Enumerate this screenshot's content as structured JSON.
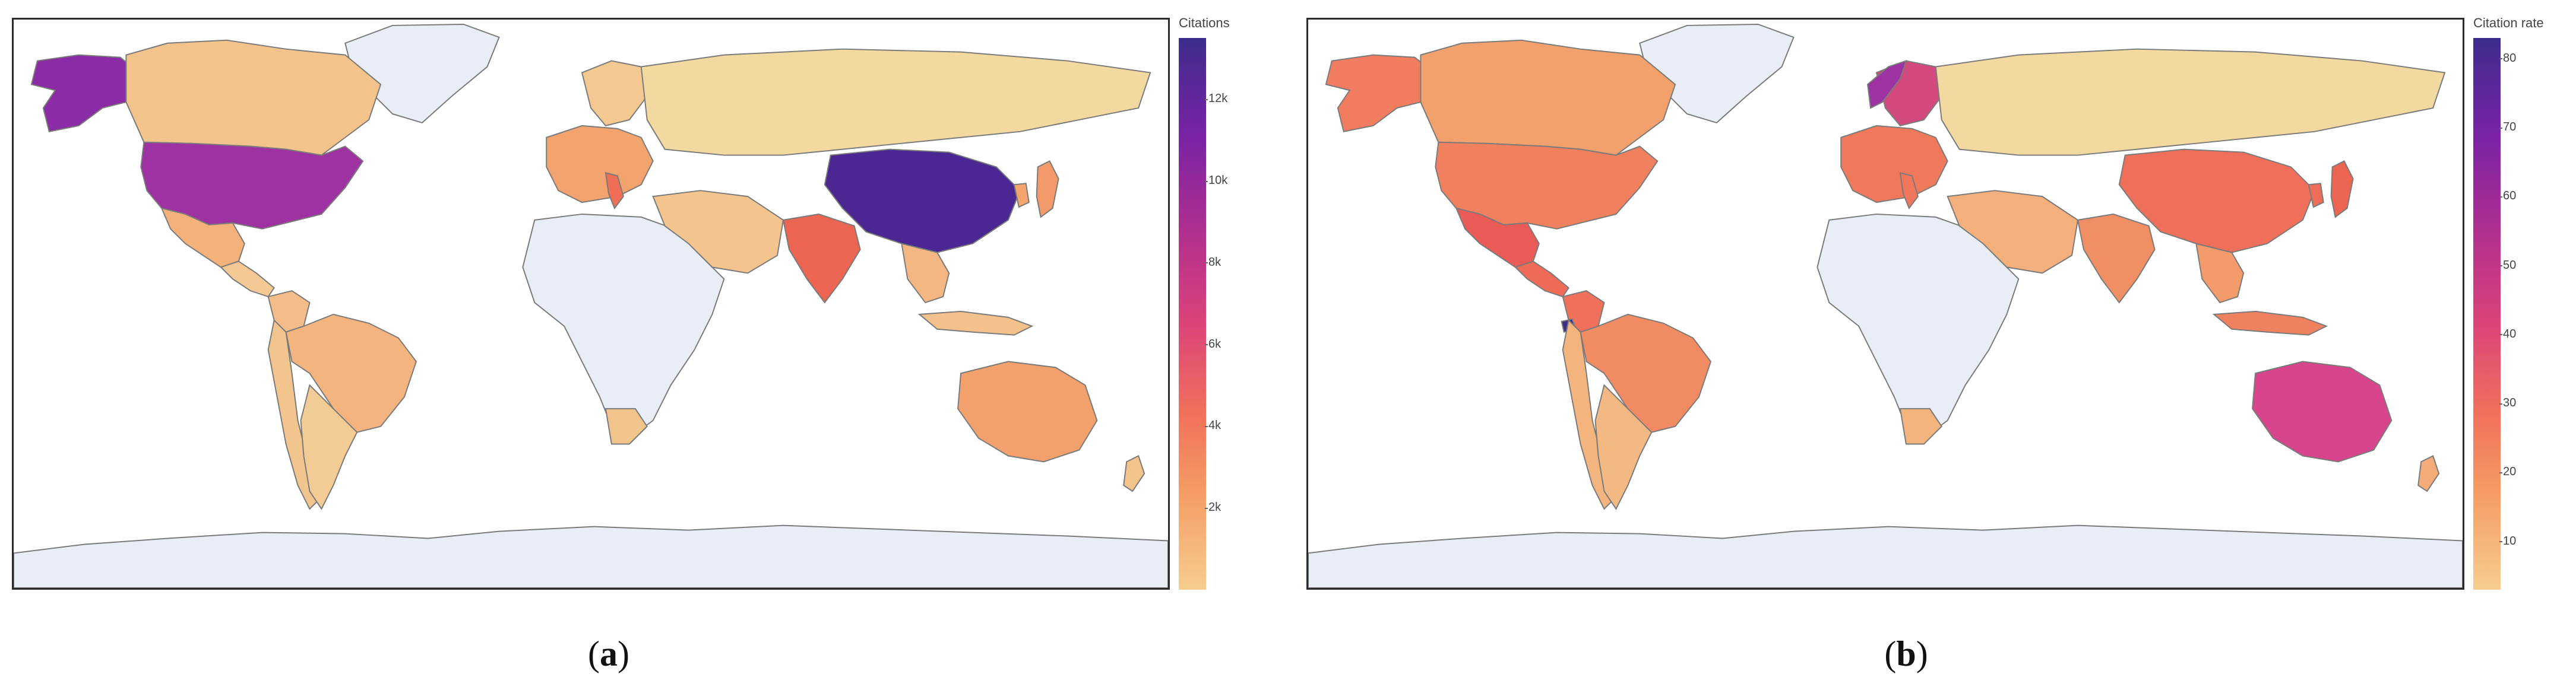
{
  "panels": [
    {
      "id": "a",
      "caption_letter": "a",
      "colorbar": {
        "title": "Citations",
        "ticks": [
          "12k",
          "10k",
          "8k",
          "6k",
          "4k",
          "2k"
        ],
        "tick_values": [
          12000,
          10000,
          8000,
          6000,
          4000,
          2000
        ],
        "range": [
          0,
          13500
        ]
      },
      "fills": {
        "canada": "#f2c48c",
        "usa": "#9f32a2",
        "alaska": "#8c2ba6",
        "greenland": "#e9edf5",
        "mexico": "#f4b27a",
        "central_america": "#f4c996",
        "south_america_west": "#f3c58e",
        "brazil": "#f4b47f",
        "colombia": "#f4bc88",
        "argentina": "#f3cb95",
        "africa": "#e9edf5",
        "south_africa": "#f1c48b",
        "europe": "#f3a36e",
        "italy": "#ee6f56",
        "scandinavia": "#f3c991",
        "russia": "#f2d9a0",
        "middle_east": "#f3c48d",
        "india": "#ec6553",
        "china": "#4a2793",
        "japan": "#f29a6a",
        "korea": "#f4a46f",
        "southeast_asia": "#f4b784",
        "indonesia": "#f3c18b",
        "australia": "#f2a06c",
        "new_zealand": "#f3c38c",
        "antarctica": "#e9edf5"
      }
    },
    {
      "id": "b",
      "caption_letter": "b",
      "colorbar": {
        "title": "Citation rate",
        "ticks": [
          "80",
          "70",
          "60",
          "50",
          "40",
          "30",
          "20",
          "10"
        ],
        "tick_values": [
          80,
          70,
          60,
          50,
          40,
          30,
          20,
          10
        ],
        "range": [
          3,
          83
        ]
      },
      "fills": {
        "canada": "#f2a06c",
        "usa": "#f0805e",
        "alaska": "#f27c60",
        "greenland": "#e9edf5",
        "mexico": "#ea5a56",
        "central_america": "#ee6b58",
        "south_america_west": "#f3b47e",
        "brazil": "#f18b62",
        "colombia": "#f0705b",
        "ecuador": "#3d2c8c",
        "argentina": "#f3b982",
        "africa": "#e9edf5",
        "south_africa": "#f3b47e",
        "europe": "#f0795c",
        "italy": "#f0775c",
        "scandinavia": "#d24a7e",
        "norway": "#9f32a2",
        "russia": "#f2d9a0",
        "middle_east": "#f3b07c",
        "india": "#f18f64",
        "china": "#f06f5b",
        "japan": "#ec6553",
        "korea": "#ee6d58",
        "southeast_asia": "#f39b6a",
        "indonesia": "#f0815f",
        "australia": "#d8458c",
        "new_zealand": "#f3ab78",
        "antarctica": "#e9edf5"
      }
    }
  ]
}
